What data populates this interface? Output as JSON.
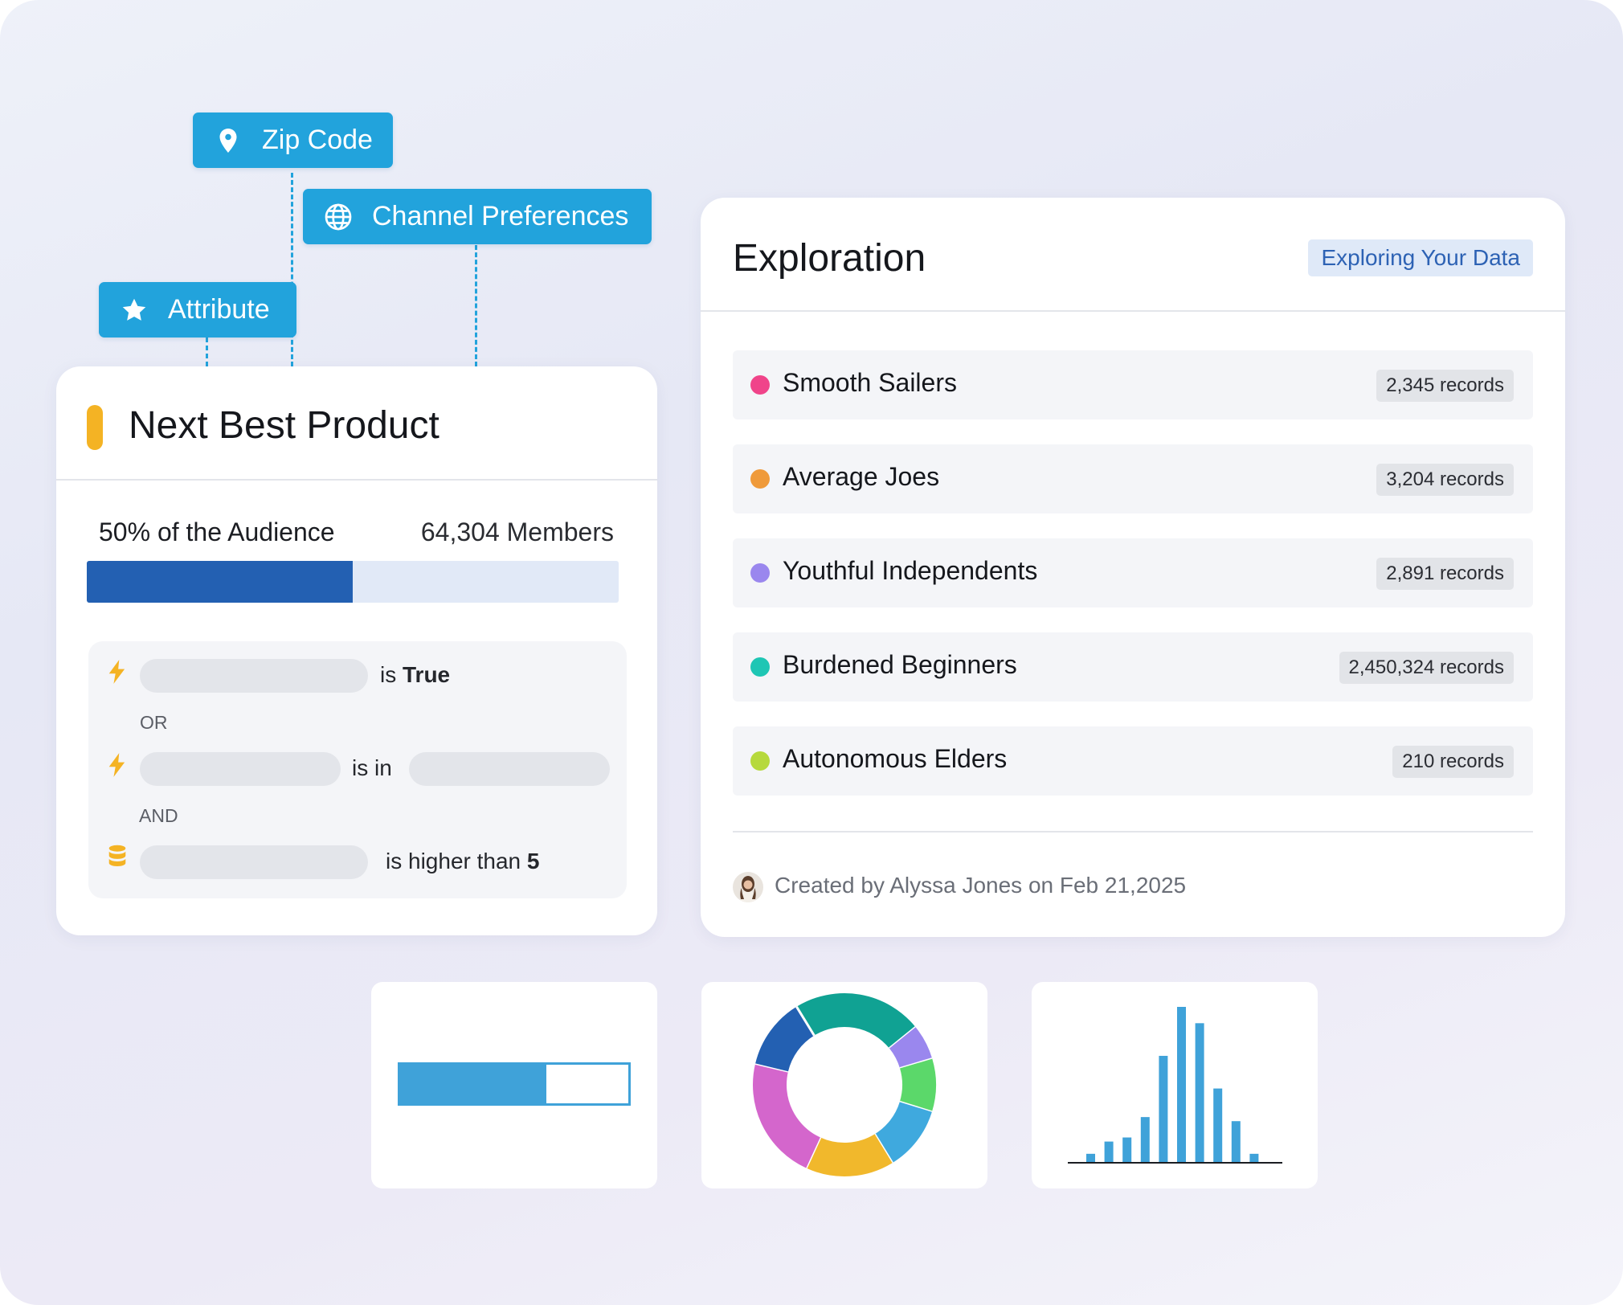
{
  "tags": {
    "zip_code": "Zip Code",
    "channel_preferences": "Channel Preferences",
    "attribute": "Attribute"
  },
  "next_best_product": {
    "title": "Next Best Product",
    "audience_label": "50% of the Audience",
    "members": "64,304 Members",
    "audience_fraction": 0.5,
    "rules": {
      "rule1_op": "is ",
      "rule1_value": "True",
      "conj1": "OR",
      "rule2_op": "is in",
      "conj2": "AND",
      "rule3_op": "is higher than ",
      "rule3_value": "5"
    }
  },
  "exploration": {
    "title": "Exploration",
    "badge": "Exploring Your Data",
    "segments": [
      {
        "name": "Smooth Sailers",
        "count": "2,345 records",
        "color": "#f0448a"
      },
      {
        "name": "Average Joes",
        "count": "3,204 records",
        "color": "#ef9a3a"
      },
      {
        "name": "Youthful Independents",
        "count": "2,891 records",
        "color": "#9a87ee"
      },
      {
        "name": "Burdened Beginners",
        "count": "2,450,324 records",
        "color": "#1ec6b4"
      },
      {
        "name": "Autonomous Elders",
        "count": "210 records",
        "color": "#b6d93c"
      }
    ],
    "created": "Created by Alyssa Jones on Feb 21,2025"
  },
  "mini_bar": {
    "fraction": 0.64,
    "color": "#3fa2d9"
  },
  "mini_donut": {
    "slices": [
      {
        "value": 22,
        "color": "#10a293"
      },
      {
        "value": 6,
        "color": "#9a87ee"
      },
      {
        "value": 9,
        "color": "#5bd86a"
      },
      {
        "value": 11,
        "color": "#3fa9de"
      },
      {
        "value": 15,
        "color": "#f1b82c"
      },
      {
        "value": 21,
        "color": "#d466cc"
      },
      {
        "value": 12,
        "color": "#2360b2"
      }
    ]
  },
  "mini_hist": {
    "values": [
      1,
      2.5,
      3,
      5.5,
      13,
      19,
      17,
      9,
      5,
      1
    ],
    "color": "#3fa2d9"
  }
}
